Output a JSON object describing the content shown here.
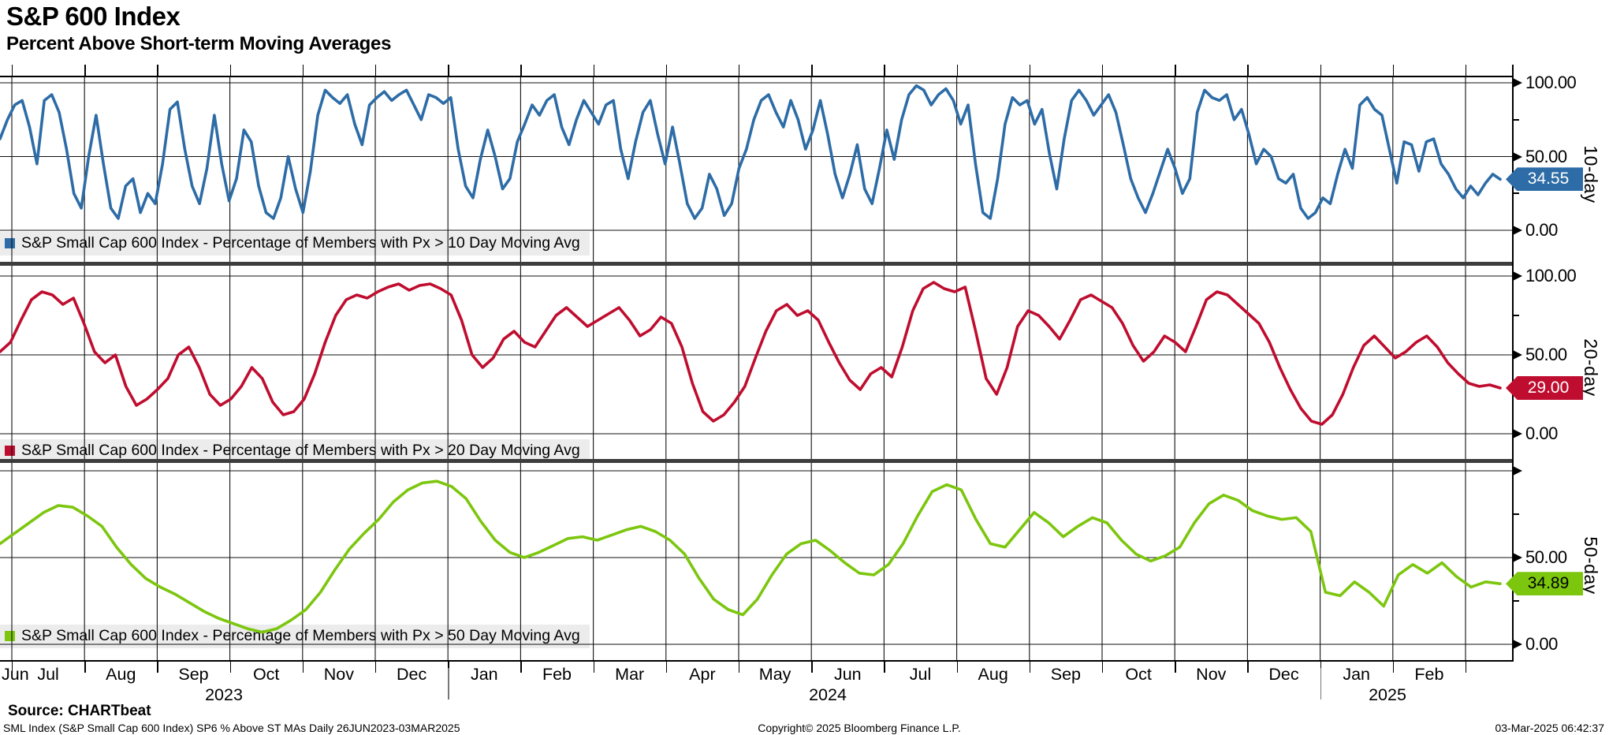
{
  "header": {
    "title": "S&P 600 Index",
    "subtitle": "Percent Above Short-term Moving Averages"
  },
  "footer": {
    "source_label": "Source: CHARTbeat",
    "meta_line": "SML Index (S&P Small Cap 600 Index) SP6 % Above ST MAs  Daily 26JUN2023-03MAR2025",
    "copyright": "Copyright© 2025 Bloomberg Finance L.P.",
    "timestamp": "03-Mar-2025 06:42:37"
  },
  "chart_data": {
    "type": "line",
    "title": "S&P 600 Index",
    "subtitle": "Percent Above Short-term Moving Averages",
    "grid": true,
    "x_axis": {
      "start": "26JUN2023",
      "end": "03MAR2025",
      "month_labels": [
        "Jun",
        "Jul",
        "Aug",
        "Sep",
        "Oct",
        "Nov",
        "Dec",
        "Jan",
        "Feb",
        "Mar",
        "Apr",
        "May",
        "Jun",
        "Jul",
        "Aug",
        "Sep",
        "Oct",
        "Nov",
        "Dec",
        "Jan",
        "Feb"
      ],
      "year_labels": [
        "2023",
        "2024",
        "2025"
      ]
    },
    "y_axis": {
      "min": 0,
      "max": 100,
      "labeled_ticks": [
        100,
        50,
        0
      ],
      "minor_ticks": [
        75,
        25
      ],
      "tick_label_format": [
        "100.00",
        "50.00",
        "0.00"
      ],
      "position": "right"
    },
    "panels": [
      {
        "name": "10-day",
        "legend": "S&P Small Cap 600 Index - Percentage of Members with Px > 10 Day Moving Avg",
        "color": "#2D6CA6",
        "badge_text_color": "#ffffff",
        "last_value": 34.55,
        "last_value_label": "34.55",
        "y_tick_labels": [
          "100.00",
          "50.00",
          "0.00"
        ],
        "values": [
          62,
          75,
          85,
          88,
          70,
          45,
          88,
          92,
          80,
          55,
          25,
          15,
          50,
          78,
          45,
          15,
          8,
          30,
          35,
          12,
          25,
          18,
          45,
          82,
          87,
          55,
          30,
          18,
          42,
          78,
          45,
          20,
          35,
          68,
          60,
          30,
          12,
          8,
          22,
          50,
          28,
          12,
          40,
          78,
          95,
          90,
          86,
          92,
          72,
          58,
          85,
          90,
          94,
          88,
          92,
          95,
          85,
          75,
          92,
          90,
          86,
          90,
          55,
          30,
          22,
          48,
          68,
          50,
          28,
          35,
          60,
          72,
          85,
          78,
          88,
          92,
          70,
          58,
          75,
          88,
          80,
          72,
          85,
          88,
          55,
          35,
          60,
          80,
          88,
          65,
          45,
          70,
          45,
          18,
          8,
          15,
          38,
          28,
          10,
          18,
          42,
          55,
          75,
          88,
          92,
          80,
          70,
          88,
          75,
          55,
          68,
          88,
          65,
          38,
          22,
          38,
          58,
          28,
          18,
          42,
          68,
          48,
          75,
          92,
          98,
          95,
          85,
          92,
          96,
          88,
          72,
          85,
          45,
          12,
          8,
          35,
          72,
          90,
          85,
          88,
          72,
          82,
          52,
          28,
          62,
          88,
          95,
          88,
          78,
          85,
          92,
          80,
          58,
          35,
          22,
          12,
          25,
          40,
          55,
          42,
          25,
          35,
          80,
          95,
          90,
          88,
          92,
          75,
          82,
          65,
          45,
          55,
          50,
          35,
          32,
          38,
          15,
          8,
          12,
          22,
          18,
          38,
          55,
          42,
          85,
          90,
          82,
          78,
          55,
          32,
          60,
          58,
          40,
          60,
          62,
          45,
          38,
          28,
          22,
          30,
          24,
          32,
          38,
          34.55
        ]
      },
      {
        "name": "20-day",
        "legend": "S&P Small Cap 600 Index - Percentage of Members with Px > 20 Day Moving Avg",
        "color": "#BF0D2F",
        "badge_text_color": "#ffffff",
        "last_value": 29.0,
        "last_value_label": "29.00",
        "y_tick_labels": [
          "100.00",
          "50.00",
          "0.00"
        ],
        "values": [
          52,
          58,
          72,
          85,
          90,
          88,
          82,
          86,
          70,
          52,
          45,
          50,
          30,
          18,
          22,
          28,
          35,
          50,
          55,
          42,
          25,
          18,
          22,
          30,
          42,
          35,
          20,
          12,
          14,
          22,
          38,
          58,
          75,
          85,
          88,
          86,
          90,
          93,
          95,
          91,
          94,
          95,
          92,
          88,
          72,
          50,
          42,
          48,
          60,
          65,
          58,
          55,
          65,
          75,
          80,
          74,
          68,
          72,
          76,
          80,
          72,
          62,
          66,
          74,
          70,
          55,
          32,
          14,
          8,
          12,
          20,
          30,
          48,
          65,
          78,
          82,
          75,
          78,
          72,
          58,
          45,
          34,
          28,
          38,
          42,
          36,
          55,
          78,
          92,
          96,
          92,
          90,
          93,
          65,
          35,
          25,
          42,
          68,
          78,
          75,
          68,
          60,
          72,
          85,
          88,
          84,
          80,
          70,
          56,
          46,
          52,
          62,
          58,
          52,
          68,
          85,
          90,
          88,
          82,
          76,
          70,
          58,
          42,
          28,
          16,
          8,
          6,
          12,
          25,
          42,
          56,
          62,
          55,
          48,
          52,
          58,
          62,
          55,
          45,
          38,
          32,
          30,
          31,
          29
        ]
      },
      {
        "name": "50-day",
        "legend": "S&P Small Cap 600 Index - Percentage of Members with Px > 50 Day Moving Avg",
        "color": "#7CC60E",
        "badge_text_color": "#000000",
        "last_value": 34.89,
        "last_value_label": "34.89",
        "y_tick_labels": [
          "",
          "50.00",
          "0.00"
        ],
        "values": [
          58,
          64,
          70,
          76,
          80,
          79,
          74,
          68,
          56,
          46,
          38,
          33,
          29,
          24,
          19,
          15,
          12,
          9,
          7,
          9,
          14,
          20,
          30,
          43,
          55,
          64,
          72,
          82,
          89,
          93,
          94,
          91,
          84,
          71,
          60,
          53,
          50,
          53,
          57,
          61,
          62,
          60,
          63,
          66,
          68,
          65,
          60,
          52,
          38,
          26,
          20,
          17,
          26,
          40,
          52,
          58,
          60,
          54,
          47,
          41,
          40,
          46,
          58,
          74,
          88,
          92,
          89,
          72,
          58,
          56,
          66,
          76,
          70,
          62,
          68,
          73,
          70,
          60,
          52,
          48,
          51,
          56,
          70,
          81,
          86,
          83,
          77,
          74,
          72,
          73,
          65,
          30,
          28,
          36,
          30,
          22,
          40,
          46,
          41,
          47,
          39,
          33,
          36,
          34.89
        ]
      }
    ]
  }
}
